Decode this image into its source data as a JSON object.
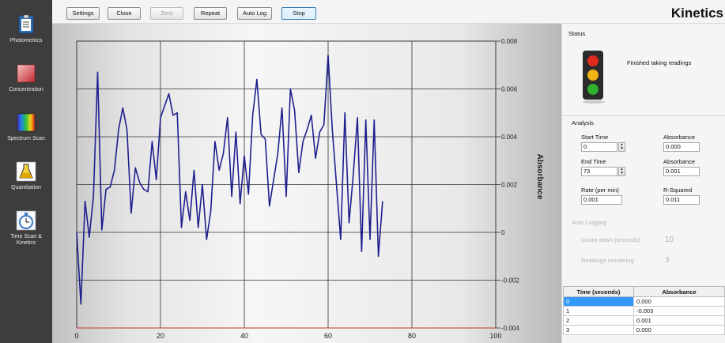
{
  "sidebar": {
    "items": [
      {
        "label": "Photometrics",
        "icon": "clipboard-icon"
      },
      {
        "label": "Concentration",
        "icon": "red-square-icon"
      },
      {
        "label": "Spectrum Scan",
        "icon": "spectrum-icon"
      },
      {
        "label": "Quantitation",
        "icon": "flask-icon"
      },
      {
        "label": "Time Scan & Kinetics",
        "icon": "stopwatch-icon"
      }
    ]
  },
  "toolbar": {
    "buttons": {
      "settings": "Settings",
      "close": "Close",
      "zero": "Zero",
      "repeat": "Repeat",
      "auto_log": "Auto Log",
      "stop": "Stop"
    },
    "title": "Kinetics"
  },
  "status": {
    "section_title": "Status",
    "message": "Finished taking readings",
    "icon": "traffic-light-icon"
  },
  "analysis": {
    "section_title": "Analysis",
    "start_time_label": "Start Time",
    "start_time_value": "0",
    "start_absorbance_label": "Absorbance",
    "start_absorbance_value": "0.000",
    "end_time_label": "End Time",
    "end_time_value": "73",
    "end_absorbance_label": "Absorbance",
    "end_absorbance_value": "0.001",
    "rate_label": "Rate (per min)",
    "rate_value": "0.001",
    "rsq_label": "R-Squared",
    "rsq_value": "0.011"
  },
  "auto_logging": {
    "section_title": "Auto Logging",
    "countdown_label": "Count down (seconds)",
    "countdown_value": "10",
    "readings_label": "Readings remaining",
    "readings_value": "3"
  },
  "table": {
    "columns": [
      "Time (seconds)",
      "Absorbance"
    ],
    "rows": [
      [
        "0",
        "0.000"
      ],
      [
        "1",
        "-0.003"
      ],
      [
        "2",
        "0.001"
      ],
      [
        "3",
        "0.000"
      ]
    ]
  },
  "chart_data": {
    "type": "line",
    "ylabel": "Absorbance",
    "xlim": [
      0,
      100
    ],
    "ylim": [
      -0.004,
      0.008
    ],
    "x_ticks": [
      "0",
      "20",
      "40",
      "60",
      "80",
      "100"
    ],
    "y_ticks": [
      "-0.004",
      "-0.002",
      "0",
      "0.002",
      "0.004",
      "0.006",
      "0.008"
    ],
    "grid": true,
    "line_color": "#1f1f8f",
    "baseline_color": "#c0392b",
    "x": [
      0,
      1,
      2,
      3,
      4,
      5,
      6,
      7,
      8,
      9,
      10,
      11,
      12,
      13,
      14,
      15,
      16,
      17,
      18,
      19,
      20,
      21,
      22,
      23,
      24,
      25,
      26,
      27,
      28,
      29,
      30,
      31,
      32,
      33,
      34,
      35,
      36,
      37,
      38,
      39,
      40,
      41,
      42,
      43,
      44,
      45,
      46,
      47,
      48,
      49,
      50,
      51,
      52,
      53,
      54,
      55,
      56,
      57,
      58,
      59,
      60,
      61,
      62,
      63,
      64,
      65,
      66,
      67,
      68,
      69,
      70,
      71,
      72,
      73
    ],
    "y": [
      0.0,
      -0.003,
      0.0013,
      -0.0002,
      0.0015,
      0.0067,
      0.0001,
      0.0018,
      0.0019,
      0.0026,
      0.0043,
      0.0052,
      0.0043,
      0.0008,
      0.0027,
      0.0021,
      0.0018,
      0.0017,
      0.0038,
      0.0022,
      0.0048,
      0.0053,
      0.0058,
      0.0049,
      0.005,
      0.0002,
      0.0017,
      0.0005,
      0.0026,
      0.0002,
      0.002,
      -0.0003,
      0.0009,
      0.0038,
      0.0026,
      0.0033,
      0.0048,
      0.0015,
      0.0042,
      0.0012,
      0.0032,
      0.0016,
      0.0049,
      0.0064,
      0.0041,
      0.0039,
      0.0011,
      0.0022,
      0.0033,
      0.0052,
      0.0015,
      0.006,
      0.0051,
      0.0025,
      0.0038,
      0.0043,
      0.0049,
      0.0031,
      0.0042,
      0.0045,
      0.0074,
      0.0043,
      0.002,
      -0.0003,
      0.005,
      0.0004,
      0.0024,
      0.0048,
      -0.0008,
      0.0047,
      -0.0003,
      0.0047,
      -0.001,
      0.0013
    ]
  }
}
